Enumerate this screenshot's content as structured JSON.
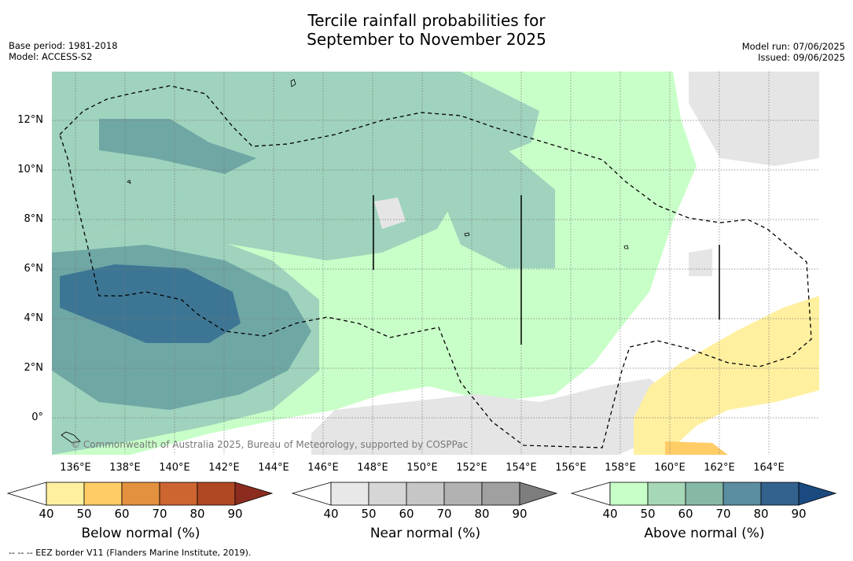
{
  "title_line1": "Tercile rainfall probabilities for",
  "title_line2": "September to November 2025",
  "base_period": "Base period: 1981-2018",
  "model": "Model: ACCESS-S2",
  "model_run": "Model run: 07/06/2025",
  "issued": "Issued: 09/06/2025",
  "lat_labels": [
    "12°N",
    "10°N",
    "8°N",
    "6°N",
    "4°N",
    "2°N",
    "0°"
  ],
  "lon_labels": [
    "136°E",
    "138°E",
    "140°E",
    "142°E",
    "144°E",
    "146°E",
    "148°E",
    "150°E",
    "152°E",
    "154°E",
    "156°E",
    "158°E",
    "160°E",
    "162°E",
    "164°E"
  ],
  "copyright": "© Commonwealth of Australia 2025, Bureau of Meteorology, supported by COSPPac",
  "colorbars": {
    "below": {
      "title": "Below normal (%)",
      "ticks": [
        "40",
        "50",
        "60",
        "70",
        "80",
        "90"
      ],
      "colors": [
        "#ffffff",
        "#fff0a0",
        "#ffcc66",
        "#e3913e",
        "#cc6530",
        "#b04824",
        "#8b2c1e"
      ]
    },
    "near": {
      "title": "Near normal (%)",
      "ticks": [
        "40",
        "50",
        "60",
        "70",
        "80",
        "90"
      ],
      "colors": [
        "#ffffff",
        "#e8e8e8",
        "#d6d6d6",
        "#c6c6c6",
        "#b2b2b2",
        "#a0a0a0",
        "#7d7d7d"
      ]
    },
    "above": {
      "title": "Above normal (%)",
      "ticks": [
        "40",
        "50",
        "60",
        "70",
        "80",
        "90"
      ],
      "colors": [
        "#ffffff",
        "#c8ffc8",
        "#a6d8b8",
        "#86b8a6",
        "#5a8ea0",
        "#34628e",
        "#1a4a80"
      ]
    }
  },
  "footer": "--  --  -- EEZ border V11 (Flanders Marine Institute, 2019)."
}
